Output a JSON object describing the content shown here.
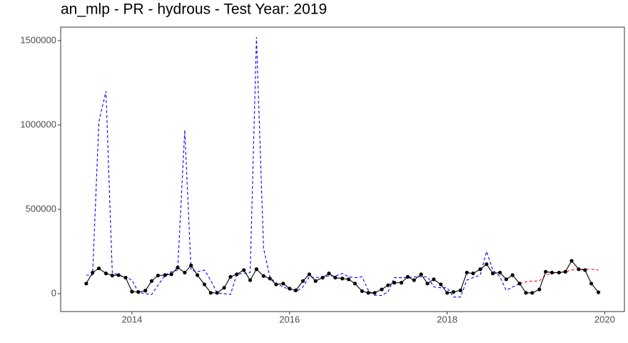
{
  "chart_data": {
    "type": "line",
    "title": "an_mlp - PR - hydrous - Test Year: 2019",
    "x": [
      2013.42,
      2013.5,
      2013.58,
      2013.67,
      2013.75,
      2013.83,
      2013.92,
      2014,
      2014.08,
      2014.17,
      2014.25,
      2014.33,
      2014.42,
      2014.5,
      2014.58,
      2014.67,
      2014.75,
      2014.83,
      2014.92,
      2015,
      2015.08,
      2015.17,
      2015.25,
      2015.33,
      2015.42,
      2015.5,
      2015.58,
      2015.67,
      2015.75,
      2015.83,
      2015.92,
      2016,
      2016.08,
      2016.17,
      2016.25,
      2016.33,
      2016.42,
      2016.5,
      2016.58,
      2016.67,
      2016.75,
      2016.83,
      2016.92,
      2017,
      2017.08,
      2017.17,
      2017.25,
      2017.33,
      2017.42,
      2017.5,
      2017.58,
      2017.67,
      2017.75,
      2017.83,
      2017.92,
      2018,
      2018.08,
      2018.17,
      2018.25,
      2018.33,
      2018.42,
      2018.5,
      2018.58,
      2018.67,
      2018.75,
      2018.83,
      2018.92,
      2019,
      2019.08,
      2019.17,
      2019.25,
      2019.33,
      2019.42,
      2019.5,
      2019.58,
      2019.67,
      2019.75,
      2019.83,
      2019.92
    ],
    "series": [
      {
        "color": "#0000ff",
        "dash": "dashed",
        "markers": false,
        "values": [
          110000,
          110000,
          1020000,
          1200000,
          125000,
          110000,
          100000,
          80000,
          10000,
          0,
          -5000,
          50000,
          110000,
          130000,
          140000,
          970000,
          140000,
          130000,
          140000,
          80000,
          5000,
          0,
          -5000,
          115000,
          120000,
          125000,
          1520000,
          270000,
          100000,
          60000,
          40000,
          25000,
          10000,
          40000,
          100000,
          95000,
          100000,
          105000,
          105000,
          120000,
          100000,
          95000,
          100000,
          20000,
          -10000,
          -10000,
          10000,
          95000,
          95000,
          95000,
          100000,
          100000,
          100000,
          40000,
          35000,
          35000,
          -20000,
          -20000,
          80000,
          95000,
          110000,
          250000,
          140000,
          100000,
          20000,
          40000,
          60000,
          null,
          null,
          null,
          null,
          null,
          null,
          null,
          null,
          null,
          null,
          null,
          null
        ]
      },
      {
        "color": "#ff0000",
        "dash": "dashed",
        "markers": false,
        "values": [
          null,
          null,
          null,
          null,
          null,
          null,
          null,
          null,
          null,
          null,
          null,
          null,
          null,
          null,
          null,
          null,
          null,
          null,
          null,
          null,
          null,
          null,
          null,
          null,
          null,
          null,
          null,
          null,
          null,
          null,
          null,
          null,
          null,
          null,
          null,
          null,
          null,
          null,
          null,
          null,
          null,
          null,
          null,
          null,
          null,
          null,
          null,
          null,
          null,
          null,
          null,
          null,
          null,
          null,
          null,
          null,
          null,
          null,
          null,
          null,
          null,
          null,
          null,
          null,
          null,
          null,
          60000,
          70000,
          75000,
          75000,
          110000,
          120000,
          125000,
          130000,
          140000,
          145000,
          145000,
          145000,
          140000
        ]
      },
      {
        "color": "#000000",
        "dash": "solid",
        "markers": true,
        "values": [
          60000,
          125000,
          150000,
          120000,
          108000,
          110000,
          95000,
          12000,
          10000,
          18000,
          75000,
          108000,
          110000,
          115000,
          155000,
          125000,
          168000,
          110000,
          55000,
          5000,
          5000,
          35000,
          100000,
          115000,
          140000,
          80000,
          145000,
          105000,
          90000,
          55000,
          60000,
          30000,
          20000,
          75000,
          115000,
          75000,
          95000,
          120000,
          95000,
          90000,
          85000,
          60000,
          15000,
          5000,
          5000,
          25000,
          50000,
          65000,
          65000,
          100000,
          80000,
          115000,
          60000,
          85000,
          55000,
          5000,
          10000,
          20000,
          125000,
          120000,
          145000,
          175000,
          120000,
          125000,
          85000,
          110000,
          60000,
          5000,
          5000,
          25000,
          130000,
          125000,
          125000,
          130000,
          195000,
          145000,
          140000,
          60000,
          8000
        ]
      }
    ],
    "xlim": [
      2013.095,
      2020.25
    ],
    "xticks": [
      2014,
      2016,
      2018,
      2020
    ],
    "ylim": [
      -106000,
      1580000
    ],
    "yticks": [
      0,
      500000,
      1000000,
      1500000
    ],
    "grid": false
  }
}
